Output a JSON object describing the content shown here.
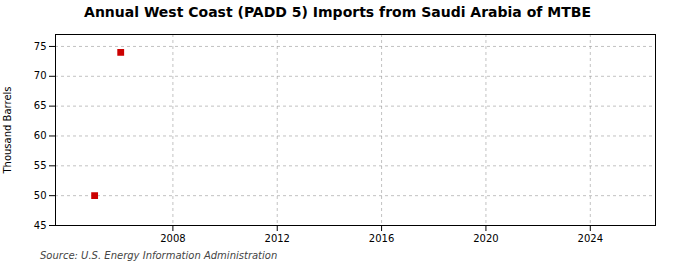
{
  "chart_data": {
    "type": "scatter",
    "title": "Annual West Coast (PADD 5) Imports from Saudi Arabia of MTBE",
    "ylabel": "Thousand Barrels",
    "source": "Source: U.S. Energy Information Administration",
    "x": [
      2005,
      2006
    ],
    "values": [
      50,
      74
    ],
    "color": "#cc0000",
    "marker": "square",
    "xlim": [
      2003.5,
      2026.5
    ],
    "ylim": [
      45,
      77
    ],
    "xticks": [
      2008,
      2012,
      2016,
      2020,
      2024
    ],
    "yticks": [
      45,
      50,
      55,
      60,
      65,
      70,
      75
    ],
    "grid": true
  }
}
